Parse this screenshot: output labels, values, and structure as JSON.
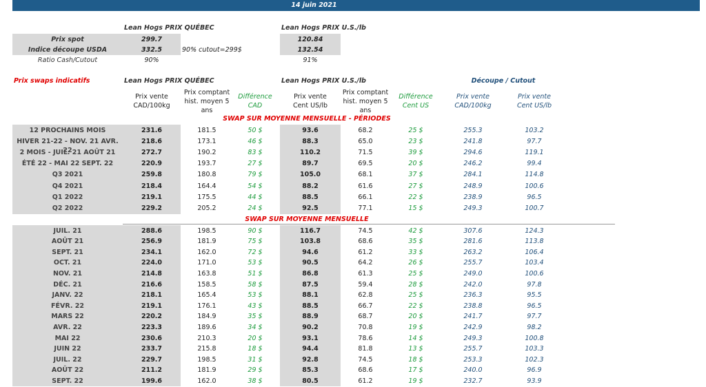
{
  "header": {
    "date": "14 juin 2021"
  },
  "spot": {
    "quebec_title": "Lean Hogs PRIX QUÉBEC",
    "us_title": "Lean Hogs PRIX U.S./lb",
    "rows": [
      {
        "label": "Prix spot",
        "quebec": "299.7",
        "us": "120.84"
      },
      {
        "label": "Indice découpe USDA",
        "quebec": "332.5",
        "note": "90% cutout=299$",
        "us": "132.54"
      },
      {
        "label": "Ratio Cash/Cutout",
        "quebec": "90%",
        "us": "91%"
      }
    ]
  },
  "swaps": {
    "title": "Prix swaps indicatifs",
    "quebec_title": "Lean Hogs PRIX QUÉBEC",
    "us_title": "Lean Hogs PRIX U.S./lb",
    "cutout_title": "Découpe / Cutout",
    "columns": [
      "Prix vente\nCAD/100kg",
      "Prix comptant\nhist. moyen 5\nans",
      "Différence\nCAD",
      "Prix vente\nCent US/lb",
      "Prix comptant\nhist. moyen 5\nans",
      "Différence\nCent US",
      "Prix vente\nCAD/100kg",
      "Prix vente\nCent US/lb"
    ],
    "sections": [
      {
        "title": "SWAP SUR MOYENNE MENSUELLE - PÉRIODES",
        "rows": [
          [
            "12 PROCHAINS MOIS",
            "231.6",
            "181.5",
            "50 $",
            "93.6",
            "68.2",
            "25 $",
            "255.3",
            "103.2"
          ],
          [
            "HIVER 21-22 - NOV. 21 AVR. 22",
            "218.6",
            "173.1",
            "46 $",
            "88.3",
            "65.0",
            "23 $",
            "241.8",
            "97.7"
          ],
          [
            "2 MOIS - JUIL. 21 AOÛT 21",
            "272.7",
            "190.2",
            "83 $",
            "110.2",
            "71.5",
            "39 $",
            "294.6",
            "119.1"
          ],
          [
            "ÉTÉ 22 - MAI 22 SEPT. 22",
            "220.9",
            "193.7",
            "27 $",
            "89.7",
            "69.5",
            "20 $",
            "246.2",
            "99.4"
          ],
          [
            "Q3 2021",
            "259.8",
            "180.8",
            "79 $",
            "105.0",
            "68.1",
            "37 $",
            "284.1",
            "114.8"
          ],
          [
            "Q4 2021",
            "218.4",
            "164.4",
            "54 $",
            "88.2",
            "61.6",
            "27 $",
            "248.9",
            "100.6"
          ],
          [
            "Q1 2022",
            "219.1",
            "175.5",
            "44 $",
            "88.5",
            "66.1",
            "22 $",
            "238.9",
            "96.5"
          ],
          [
            "Q2 2022",
            "229.2",
            "205.2",
            "24 $",
            "92.5",
            "77.1",
            "15 $",
            "249.3",
            "100.7"
          ]
        ]
      },
      {
        "title": "SWAP SUR MOYENNE MENSUELLE",
        "rows": [
          [
            "JUIL. 21",
            "288.6",
            "198.5",
            "90 $",
            "116.7",
            "74.5",
            "42 $",
            "307.6",
            "124.3"
          ],
          [
            "AOÛT 21",
            "256.9",
            "181.9",
            "75 $",
            "103.8",
            "68.6",
            "35 $",
            "281.6",
            "113.8"
          ],
          [
            "SEPT. 21",
            "234.1",
            "162.0",
            "72 $",
            "94.6",
            "61.2",
            "33 $",
            "263.2",
            "106.4"
          ],
          [
            "OCT. 21",
            "224.0",
            "171.0",
            "53 $",
            "90.5",
            "64.2",
            "26 $",
            "255.7",
            "103.4"
          ],
          [
            "NOV. 21",
            "214.8",
            "163.8",
            "51 $",
            "86.8",
            "61.3",
            "25 $",
            "249.0",
            "100.6"
          ],
          [
            "DÉC. 21",
            "216.6",
            "158.5",
            "58 $",
            "87.5",
            "59.4",
            "28 $",
            "242.0",
            "97.8"
          ],
          [
            "JANV. 22",
            "218.1",
            "165.4",
            "53 $",
            "88.1",
            "62.8",
            "25 $",
            "236.3",
            "95.5"
          ],
          [
            "FÉVR. 22",
            "219.1",
            "176.1",
            "43 $",
            "88.5",
            "66.7",
            "22 $",
            "238.8",
            "96.5"
          ],
          [
            "MARS 22",
            "220.2",
            "184.9",
            "35 $",
            "88.9",
            "68.7",
            "20 $",
            "241.7",
            "97.7"
          ],
          [
            "AVR. 22",
            "223.3",
            "189.6",
            "34 $",
            "90.2",
            "70.8",
            "19 $",
            "242.9",
            "98.2"
          ],
          [
            "MAI 22",
            "230.6",
            "210.3",
            "20 $",
            "93.1",
            "78.6",
            "14 $",
            "249.3",
            "100.8"
          ],
          [
            "JUIN 22",
            "233.7",
            "215.8",
            "18 $",
            "94.4",
            "81.8",
            "13 $",
            "255.7",
            "103.3"
          ],
          [
            "JUIL. 22",
            "229.7",
            "198.5",
            "31 $",
            "92.8",
            "74.5",
            "18 $",
            "253.3",
            "102.3"
          ],
          [
            "AOÛT 22",
            "211.2",
            "181.9",
            "29 $",
            "85.3",
            "68.6",
            "17 $",
            "240.0",
            "96.9"
          ],
          [
            "SEPT. 22",
            "199.6",
            "162.0",
            "38 $",
            "80.5",
            "61.2",
            "19 $",
            "232.7",
            "93.9"
          ]
        ]
      }
    ]
  }
}
